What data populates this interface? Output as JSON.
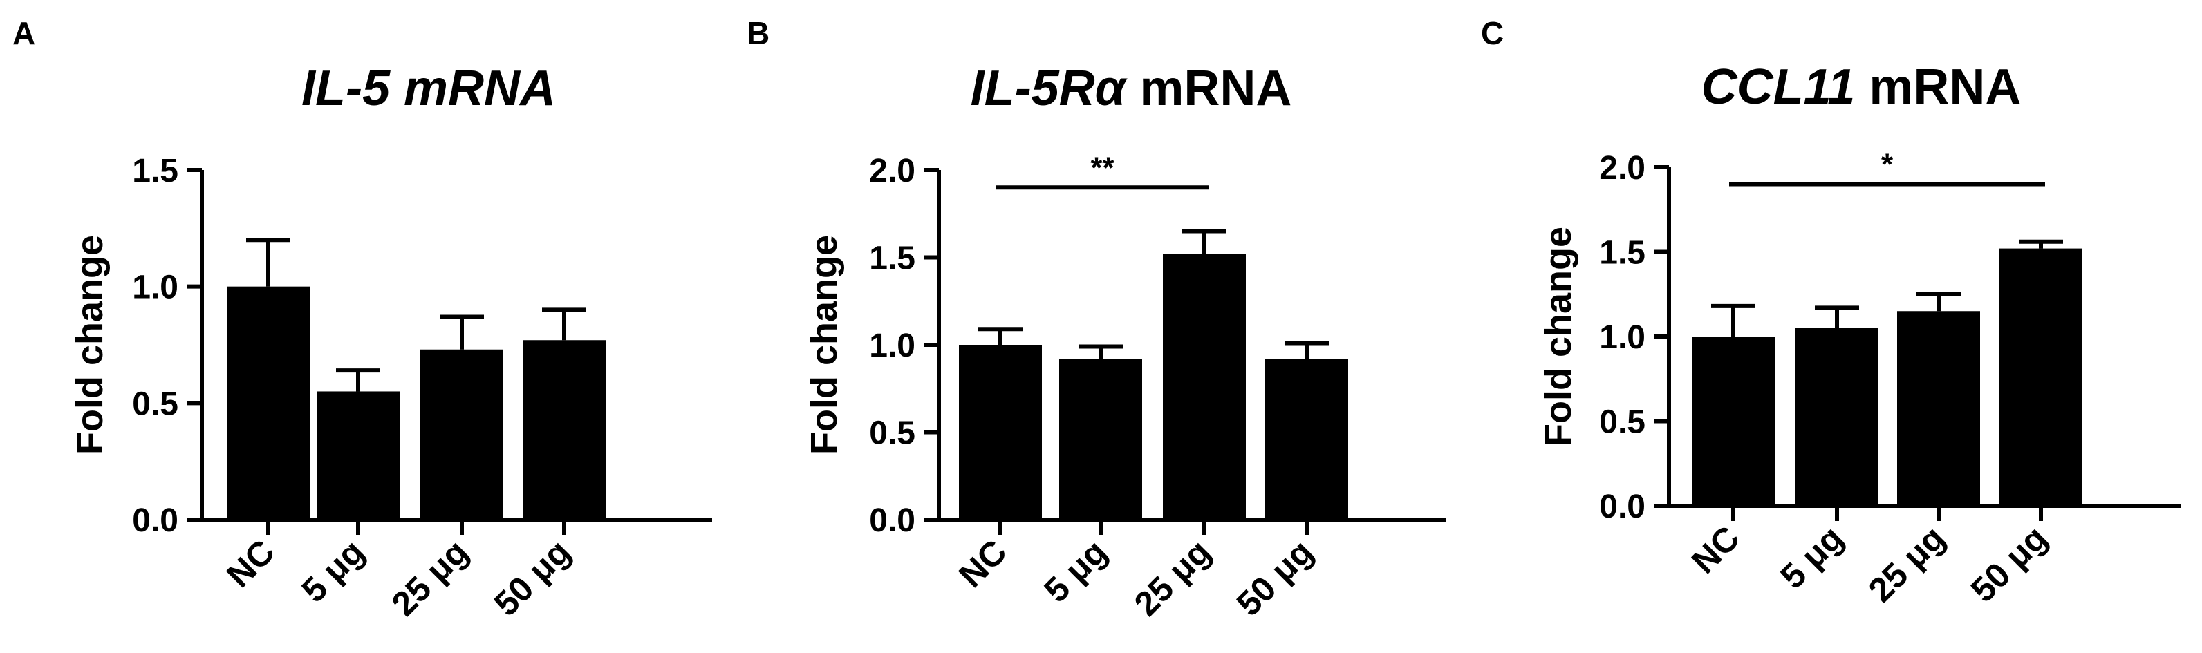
{
  "chart_data": [
    {
      "type": "bar",
      "panel_label": "A",
      "title_italic": "IL-5 mRNA",
      "title_plain": "",
      "ylabel": "Fold change",
      "ylim": [
        0,
        1.5
      ],
      "yticks": [
        "0.0",
        "0.5",
        "1.0",
        "1.5"
      ],
      "categories": [
        "NC",
        "5 μg",
        "25 μg",
        "50 μg"
      ],
      "values": [
        1.0,
        0.55,
        0.73,
        0.77
      ],
      "errors": [
        0.2,
        0.09,
        0.14,
        0.13
      ],
      "significance": null,
      "bar_color": "#000000"
    },
    {
      "type": "bar",
      "panel_label": "B",
      "title_italic": "IL-5Rα",
      "title_plain": " mRNA",
      "ylabel": "Fold change",
      "ylim": [
        0,
        2.0
      ],
      "yticks": [
        "0.0",
        "0.5",
        "1.0",
        "1.5",
        "2.0"
      ],
      "categories": [
        "NC",
        "5 μg",
        "25 μg",
        "50 μg"
      ],
      "values": [
        1.0,
        0.92,
        1.52,
        0.92
      ],
      "errors": [
        0.09,
        0.07,
        0.13,
        0.09
      ],
      "significance": {
        "from": 0,
        "to": 2,
        "label": "**",
        "y": 1.9
      },
      "bar_color": "#000000"
    },
    {
      "type": "bar",
      "panel_label": "C",
      "title_italic": "CCL11",
      "title_plain": " mRNA",
      "ylabel": "Fold change",
      "ylim": [
        0,
        2.0
      ],
      "yticks": [
        "0.0",
        "0.5",
        "1.0",
        "1.5",
        "2.0"
      ],
      "categories": [
        "NC",
        "5 μg",
        "25 μg",
        "50 μg"
      ],
      "values": [
        1.0,
        1.05,
        1.15,
        1.52
      ],
      "errors": [
        0.18,
        0.12,
        0.1,
        0.04
      ],
      "significance": {
        "from": 0,
        "to": 3,
        "label": "*",
        "y": 1.9
      },
      "bar_color": "#000000"
    }
  ]
}
